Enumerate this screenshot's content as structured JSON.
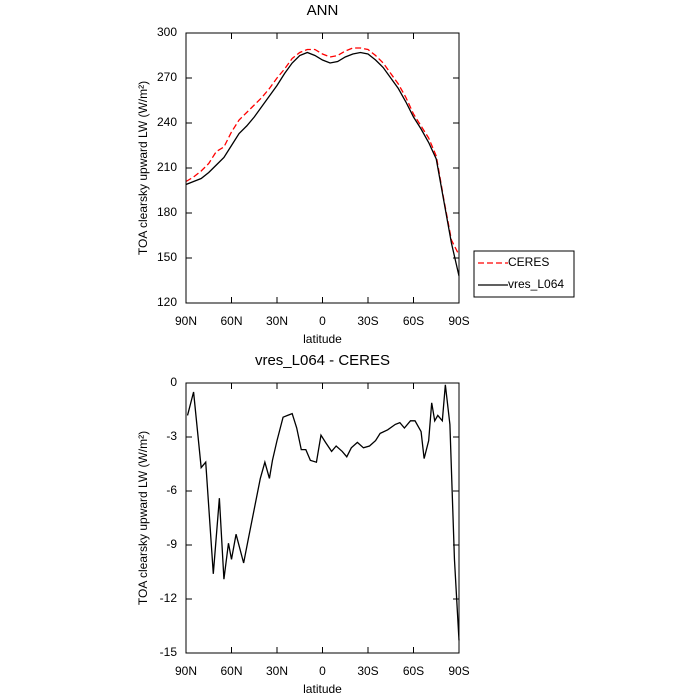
{
  "chart_data": [
    {
      "type": "line",
      "title": "ANN",
      "xlabel": "latitude",
      "ylabel": "TOA clearsky upward LW (W/m²)",
      "x": [
        90,
        85,
        80,
        75,
        70,
        65,
        60,
        55,
        50,
        45,
        40,
        35,
        30,
        25,
        20,
        15,
        10,
        5,
        0,
        -5,
        -10,
        -15,
        -20,
        -25,
        -30,
        -35,
        -40,
        -45,
        -50,
        -55,
        -60,
        -65,
        -70,
        -75,
        -80,
        -85,
        -90
      ],
      "series": [
        {
          "name": "CERES",
          "color": "#ff0000",
          "line_style": "dashed",
          "values": [
            201,
            204,
            208,
            213,
            221,
            224,
            234,
            242,
            247,
            252,
            257,
            263,
            270,
            276,
            283,
            287,
            289,
            289,
            286,
            284,
            285,
            288,
            290,
            290,
            289,
            285,
            280,
            273,
            266,
            257,
            246,
            238,
            230,
            218,
            189,
            162,
            152
          ]
        },
        {
          "name": "vres_L064",
          "color": "#000000",
          "line_style": "solid",
          "values": [
            199,
            201,
            203,
            207,
            212,
            217,
            225,
            233,
            238,
            244,
            251,
            258,
            265,
            273,
            280,
            285,
            287,
            285,
            282,
            280,
            281,
            284,
            286,
            287,
            286,
            282,
            277,
            270,
            263,
            254,
            244,
            236,
            227,
            216,
            188,
            160,
            138
          ]
        }
      ],
      "xlim": [
        90,
        -90
      ],
      "xticks": [
        {
          "value": 90,
          "label": "90N"
        },
        {
          "value": 60,
          "label": "60N"
        },
        {
          "value": 30,
          "label": "30N"
        },
        0,
        {
          "value": -30,
          "label": "30S"
        },
        {
          "value": -60,
          "label": "60S"
        },
        {
          "value": -90,
          "label": "90S"
        }
      ],
      "ylim": [
        120,
        300
      ],
      "yticks": [
        120,
        150,
        180,
        210,
        240,
        270,
        300
      ],
      "legend": "right"
    },
    {
      "type": "line",
      "title": "vres_L064 - CERES",
      "xlabel": "latitude",
      "ylabel": "TOA clearsky upward LW (W/m²)",
      "x": [
        89,
        85,
        80,
        77,
        72,
        68,
        65,
        62,
        60,
        57,
        52,
        49,
        45,
        41,
        38,
        35,
        33,
        30,
        26,
        23,
        20,
        17,
        14,
        11,
        8,
        4,
        1,
        -2,
        -6,
        -9,
        -13,
        -16,
        -19,
        -23,
        -27,
        -31,
        -35,
        -38,
        -43,
        -48,
        -51,
        -54,
        -58,
        -61,
        -65,
        -67,
        -70,
        -72,
        -74,
        -76,
        -79,
        -81,
        -84,
        -87,
        -90
      ],
      "series": [
        {
          "name": "vres_L064 - CERES",
          "color": "#000000",
          "line_style": "solid",
          "values": [
            -1.8,
            -0.5,
            -4.7,
            -4.4,
            -10.6,
            -6.4,
            -10.9,
            -8.9,
            -9.8,
            -8.4,
            -10,
            -8.7,
            -7,
            -5.3,
            -4.4,
            -5.3,
            -4.3,
            -3.2,
            -1.9,
            -1.8,
            -1.7,
            -2.5,
            -3.7,
            -3.7,
            -4.3,
            -4.4,
            -2.9,
            -3.3,
            -3.8,
            -3.5,
            -3.8,
            -4.1,
            -3.6,
            -3.3,
            -3.6,
            -3.5,
            -3.2,
            -2.8,
            -2.6,
            -2.3,
            -2.2,
            -2.5,
            -2.1,
            -2.1,
            -2.7,
            -4.2,
            -3.2,
            -1.1,
            -2.1,
            -1.8,
            -2.1,
            -0.1,
            -2.3,
            -9.8,
            -14.3
          ]
        }
      ],
      "xlim": [
        90,
        -90
      ],
      "xticks": [
        {
          "value": 90,
          "label": "90N"
        },
        {
          "value": 60,
          "label": "60N"
        },
        {
          "value": 30,
          "label": "30N"
        },
        0,
        {
          "value": -30,
          "label": "30S"
        },
        {
          "value": -60,
          "label": "60S"
        },
        {
          "value": -90,
          "label": "90S"
        }
      ],
      "ylim": [
        -15,
        0
      ],
      "yticks": [
        -15,
        -12,
        -9,
        -6,
        -3,
        0
      ]
    }
  ]
}
